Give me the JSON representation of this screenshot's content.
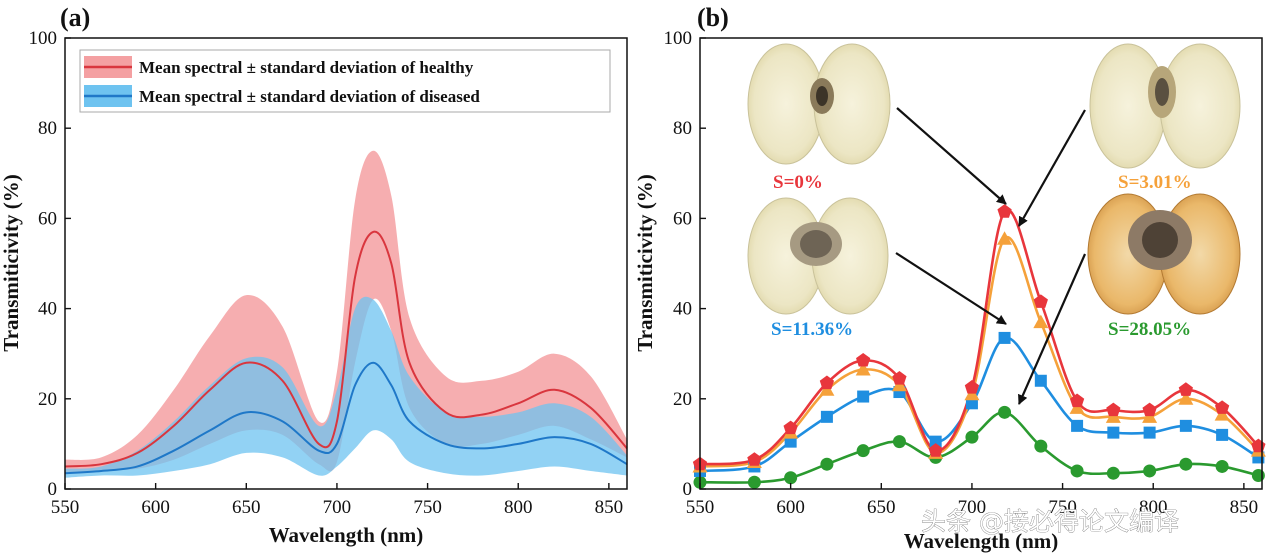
{
  "colors": {
    "healthy": "#d9363e",
    "healthy_band": "#f4a0a2",
    "diseased": "#1f78c8",
    "diseased_band": "#6ec3f0",
    "s0": "#e8363c",
    "s301": "#f5a13a",
    "s1136": "#1f8ee0",
    "s2805": "#2a9a2f",
    "arrow": "#111111"
  },
  "panel_a": {
    "label": "(a)"
  },
  "panel_b": {
    "label": "(b)"
  },
  "watermark": {
    "text": "头条 @接必得论文编译"
  },
  "chart_data": [
    {
      "type": "area",
      "title": "",
      "xlabel": "Wavelength (nm)",
      "ylabel": "Transmiticivity (%)",
      "xlim": [
        550,
        860
      ],
      "ylim": [
        0,
        100
      ],
      "xticks": [
        550,
        600,
        650,
        700,
        750,
        800,
        850
      ],
      "yticks": [
        0,
        20,
        40,
        60,
        80,
        100
      ],
      "grid": false,
      "legend_position": "top",
      "x": [
        550,
        570,
        590,
        610,
        630,
        650,
        670,
        690,
        700,
        710,
        720,
        730,
        740,
        760,
        780,
        800,
        820,
        840,
        860
      ],
      "series": [
        {
          "name": "Mean spectral ± standard deviation of healthy",
          "mean": [
            5.0,
            5.5,
            8.0,
            14.0,
            22.0,
            28.0,
            24.0,
            10.0,
            15.0,
            47.0,
            57.0,
            50.0,
            28.0,
            17.0,
            16.5,
            19.0,
            22.0,
            18.0,
            9.0
          ],
          "upper": [
            6.5,
            7.0,
            12.0,
            22.0,
            34.0,
            43.0,
            36.0,
            15.0,
            26.0,
            64.0,
            75.0,
            65.0,
            38.0,
            25.0,
            24.0,
            26.0,
            30.0,
            25.0,
            11.0
          ],
          "lower": [
            3.5,
            4.0,
            4.5,
            6.5,
            10.0,
            13.0,
            12.0,
            5.5,
            6.0,
            28.0,
            42.0,
            35.0,
            18.0,
            10.0,
            10.0,
            12.0,
            14.0,
            11.0,
            7.0
          ]
        },
        {
          "name": "Mean spectral ± standard deviation of diseased",
          "mean": [
            3.5,
            4.0,
            5.0,
            8.5,
            13.0,
            17.0,
            15.0,
            8.5,
            10.0,
            23.0,
            28.0,
            23.0,
            15.0,
            10.0,
            9.0,
            10.0,
            11.5,
            10.0,
            5.5
          ],
          "upper": [
            4.5,
            5.0,
            8.5,
            15.0,
            23.0,
            29.0,
            27.0,
            14.0,
            22.0,
            40.0,
            42.0,
            35.0,
            25.0,
            17.0,
            16.0,
            17.0,
            19.0,
            16.0,
            7.5
          ],
          "lower": [
            2.5,
            3.0,
            3.0,
            4.0,
            5.5,
            8.0,
            7.0,
            3.0,
            5.0,
            9.0,
            13.0,
            11.0,
            6.0,
            3.5,
            3.0,
            4.0,
            5.0,
            4.0,
            3.0
          ]
        }
      ]
    },
    {
      "type": "line",
      "title": "",
      "xlabel": "Wavelength (nm)",
      "ylabel": "Transmiticivity (%)",
      "xlim": [
        550,
        860
      ],
      "ylim": [
        0,
        100
      ],
      "xticks": [
        550,
        600,
        650,
        700,
        750,
        800,
        850
      ],
      "yticks": [
        0,
        20,
        40,
        60,
        80,
        100
      ],
      "grid": false,
      "x": [
        550,
        580,
        600,
        620,
        640,
        660,
        680,
        700,
        718,
        738,
        758,
        778,
        798,
        818,
        838,
        858
      ],
      "series": [
        {
          "name": "S=0%",
          "marker": "pentagon",
          "values": [
            5.5,
            6.5,
            13.5,
            23.5,
            28.5,
            24.5,
            8.5,
            22.5,
            61.5,
            41.5,
            19.5,
            17.5,
            17.5,
            22.0,
            18.0,
            9.5
          ]
        },
        {
          "name": "S=3.01%",
          "marker": "triangle",
          "values": [
            5.0,
            6.0,
            12.5,
            22.0,
            26.5,
            23.0,
            8.0,
            21.0,
            55.5,
            37.0,
            18.0,
            16.0,
            16.0,
            20.0,
            16.5,
            8.5
          ]
        },
        {
          "name": "S=11.36%",
          "marker": "square",
          "values": [
            4.0,
            5.0,
            10.5,
            16.0,
            20.5,
            21.5,
            10.5,
            19.0,
            33.5,
            24.0,
            14.0,
            12.5,
            12.5,
            14.0,
            12.0,
            7.0
          ]
        },
        {
          "name": "S=28.05%",
          "marker": "circle",
          "values": [
            1.5,
            1.5,
            2.5,
            5.5,
            8.5,
            10.5,
            7.0,
            11.5,
            17.0,
            9.5,
            4.0,
            3.5,
            4.0,
            5.5,
            5.0,
            3.0
          ]
        }
      ],
      "annotations": [
        "S=0%",
        "S=3.01%",
        "S=11.36%",
        "S=28.05%"
      ]
    }
  ]
}
